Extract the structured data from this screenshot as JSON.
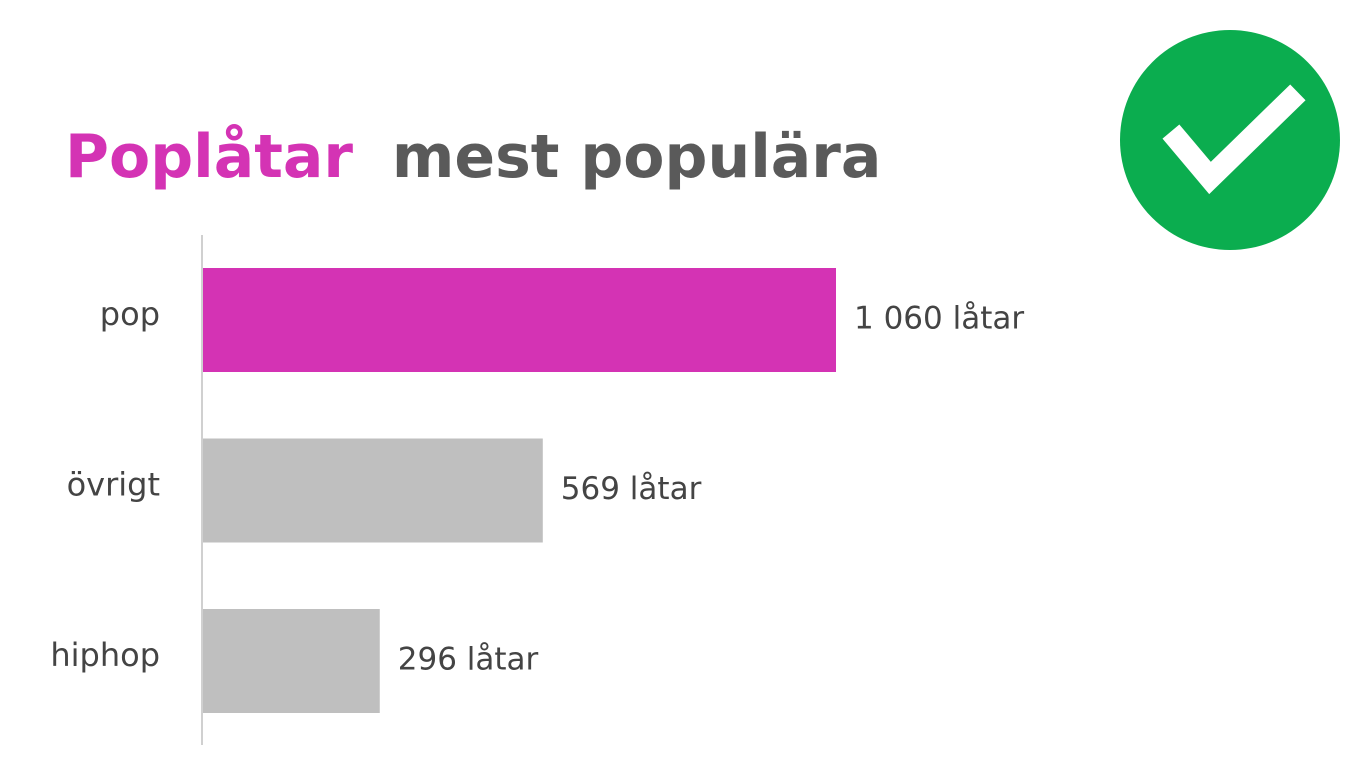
{
  "chart_data": {
    "type": "bar",
    "orientation": "horizontal",
    "title": [
      "Poplåtar",
      "mest populära"
    ],
    "title_colors": [
      "#d433b4",
      "#5a5a5a"
    ],
    "categories": [
      "pop",
      "övrigt",
      "hiphop"
    ],
    "values": [
      1060,
      569,
      296
    ],
    "value_labels": [
      "1 060 låtar",
      "569 låtar",
      "296 låtar"
    ],
    "colors": [
      "#d433b4",
      "#bfbfbf",
      "#bfbfbf"
    ]
  }
}
